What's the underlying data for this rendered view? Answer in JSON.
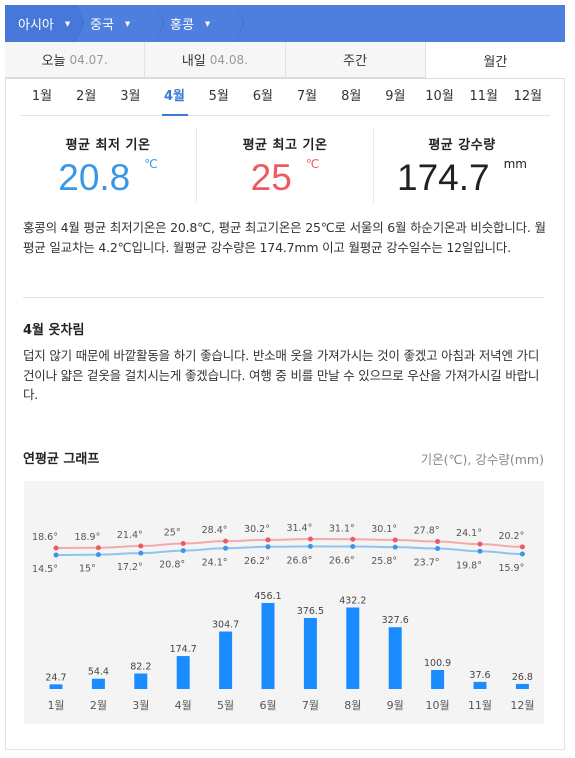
{
  "breadcrumb": [
    {
      "label": "아시아"
    },
    {
      "label": "중국"
    },
    {
      "label": "홍콩"
    }
  ],
  "day_tabs": [
    {
      "label": "오늘",
      "date": "04.07."
    },
    {
      "label": "내일",
      "date": "04.08."
    },
    {
      "label": "주간",
      "date": ""
    },
    {
      "label": "월간",
      "date": ""
    }
  ],
  "months": [
    "1월",
    "2월",
    "3월",
    "4월",
    "5월",
    "6월",
    "7월",
    "8월",
    "9월",
    "10월",
    "11월",
    "12월"
  ],
  "selected_month": "4월",
  "stats": {
    "min_label": "평균 최저 기온",
    "min_value": "20.8",
    "min_unit": "℃",
    "max_label": "평균 최고 기온",
    "max_value": "25",
    "max_unit": "℃",
    "rain_label": "평균 강수량",
    "rain_value": "174.7",
    "rain_unit": "mm"
  },
  "summary": "홍콩의 4월 평균 최저기온은 20.8℃, 평균 최고기온은 25℃로 서울의 6월 하순기온과 비슷합니다. 월평균 일교차는 4.2℃입니다. 월평균 강수량은 174.7mm 이고 월평균 강수일수는 12일입니다.",
  "clothing": {
    "title": "4월 옷차림",
    "text": "덥지 않기 때문에 바깥활동을 하기 좋습니다. 반소매 옷을 가져가시는 것이 좋겠고 아침과 저녁엔 가디건이나 얇은 겉옷을 걸치시는게 좋겠습니다. 여행 중 비를 만날 수 있으므로 우산을 가져가시길 바랍니다."
  },
  "graph": {
    "title": "연평균 그래프",
    "unit_label": "기온(℃), 강수량(mm)"
  },
  "colors": {
    "accent": "#3a7bd5",
    "min_temp": "#3a97e6",
    "max_temp": "#ef5a61",
    "bar": "#1a8cff"
  },
  "chart_data": {
    "type": "bar+line",
    "title": "연평균 그래프",
    "categories": [
      "1월",
      "2월",
      "3월",
      "4월",
      "5월",
      "6월",
      "7월",
      "8월",
      "9월",
      "10월",
      "11월",
      "12월"
    ],
    "series": [
      {
        "name": "최고 기온",
        "unit": "°",
        "values": [
          18.6,
          18.9,
          21.4,
          25,
          28.4,
          30.2,
          31.4,
          31.1,
          30.1,
          27.8,
          24.1,
          20.2
        ]
      },
      {
        "name": "최저 기온",
        "unit": "°",
        "values": [
          14.5,
          15,
          17.2,
          20.8,
          24.1,
          26.2,
          26.8,
          26.6,
          25.8,
          23.7,
          19.8,
          15.9
        ]
      },
      {
        "name": "강수량",
        "unit": "mm",
        "values": [
          24.7,
          54.4,
          82.2,
          174.7,
          304.7,
          456.1,
          376.5,
          432.2,
          327.6,
          100.9,
          37.6,
          26.8
        ]
      }
    ]
  }
}
